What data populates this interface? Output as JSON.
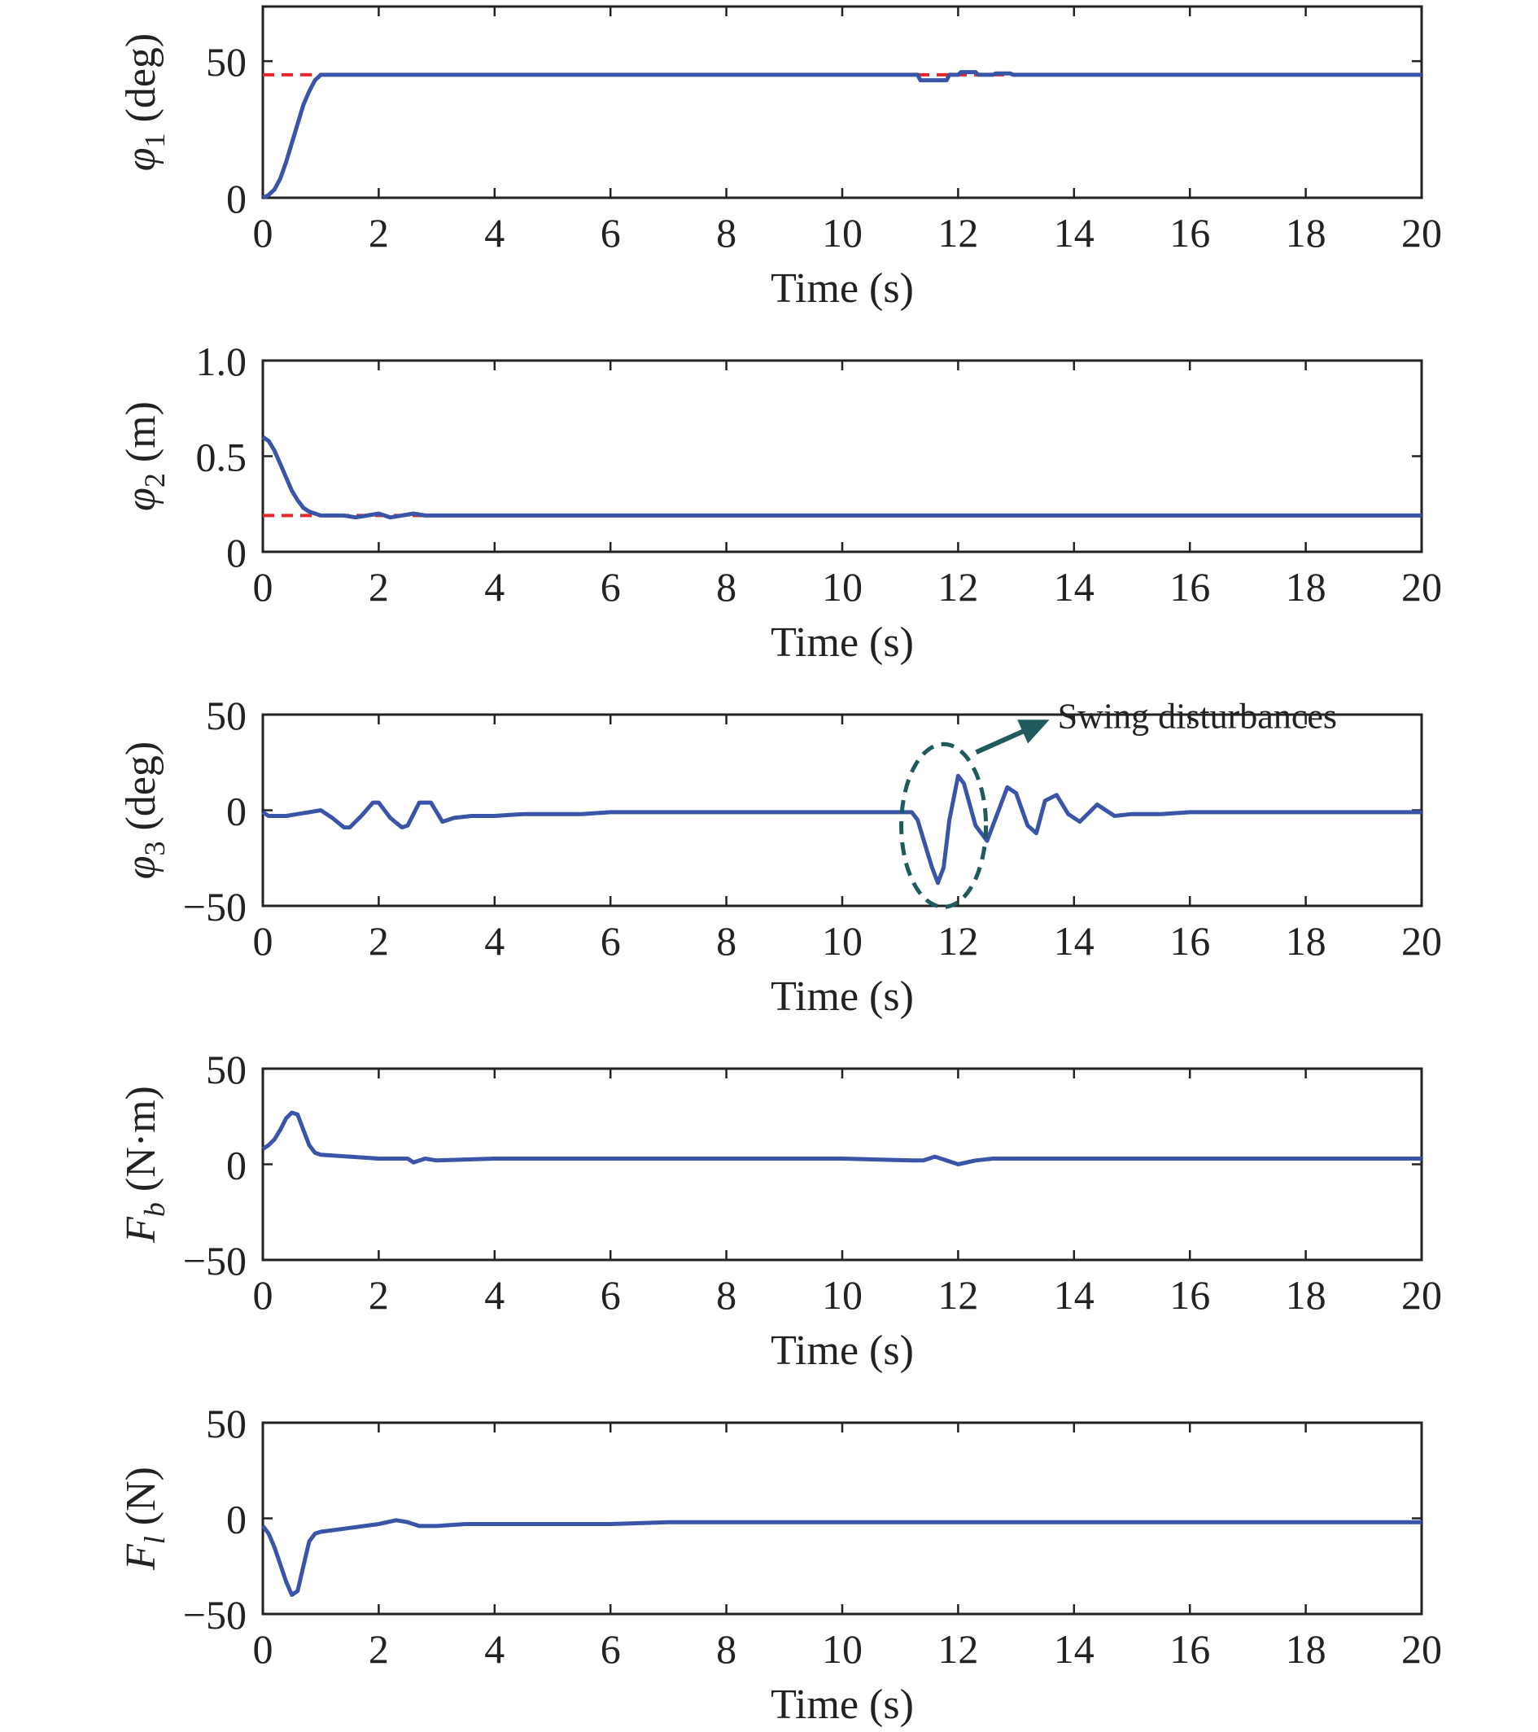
{
  "chart_data": [
    {
      "type": "line",
      "id": "phi1",
      "ylabel": {
        "symbol": "φ",
        "sub": "1",
        "unit": " (deg)"
      },
      "xlabel": "Time (s)",
      "xlim": [
        0,
        20
      ],
      "ylim": [
        0,
        70
      ],
      "xticks": [
        0,
        2,
        4,
        6,
        8,
        10,
        12,
        14,
        16,
        18,
        20
      ],
      "yticks": [
        0,
        50
      ],
      "reference": {
        "y": 45,
        "color": "#e8262a",
        "style": "dashed"
      },
      "series": [
        {
          "color": "#3a54a8",
          "x": [
            0,
            0.1,
            0.2,
            0.3,
            0.4,
            0.5,
            0.6,
            0.7,
            0.8,
            0.9,
            1.0,
            1.1,
            1.2,
            2,
            4,
            6,
            8,
            10,
            11.3,
            11.35,
            11.8,
            11.85,
            12.0,
            12.05,
            12.3,
            12.35,
            12.6,
            12.65,
            12.9,
            12.95,
            14,
            16,
            18,
            20
          ],
          "y": [
            0,
            1,
            3,
            7,
            13,
            20,
            27,
            34,
            39,
            43,
            45,
            45,
            45,
            45,
            45,
            45,
            45,
            45,
            45,
            43,
            43,
            45,
            45,
            46,
            46,
            45,
            45,
            45.5,
            45.5,
            45,
            45,
            45,
            45,
            45
          ]
        }
      ]
    },
    {
      "type": "line",
      "id": "phi2",
      "ylabel": {
        "symbol": "φ",
        "sub": "2",
        "unit": " (m)"
      },
      "xlabel": "Time (s)",
      "xlim": [
        0,
        20
      ],
      "ylim": [
        0,
        1.0
      ],
      "xticks": [
        0,
        2,
        4,
        6,
        8,
        10,
        12,
        14,
        16,
        18,
        20
      ],
      "yticks": [
        0,
        0.5,
        1.0
      ],
      "ytick_labels": [
        "0",
        "0.5",
        "1.0"
      ],
      "reference": {
        "y": 0.19,
        "color": "#e8262a",
        "style": "dashed"
      },
      "series": [
        {
          "color": "#3a54a8",
          "x": [
            0,
            0.1,
            0.2,
            0.3,
            0.4,
            0.5,
            0.6,
            0.7,
            0.8,
            0.9,
            1.0,
            1.2,
            1.4,
            1.6,
            1.8,
            2.0,
            2.2,
            2.4,
            2.6,
            2.8,
            4,
            6,
            8,
            10,
            12,
            14,
            16,
            18,
            20
          ],
          "y": [
            0.6,
            0.58,
            0.53,
            0.46,
            0.39,
            0.32,
            0.27,
            0.23,
            0.21,
            0.2,
            0.19,
            0.19,
            0.19,
            0.18,
            0.19,
            0.2,
            0.18,
            0.19,
            0.2,
            0.19,
            0.19,
            0.19,
            0.19,
            0.19,
            0.19,
            0.19,
            0.19,
            0.19,
            0.19
          ]
        }
      ]
    },
    {
      "type": "line",
      "id": "phi3",
      "ylabel": {
        "symbol": "φ",
        "sub": "3",
        "unit": " (deg)"
      },
      "xlabel": "Time (s)",
      "xlim": [
        0,
        20
      ],
      "ylim": [
        -50,
        50
      ],
      "xticks": [
        0,
        2,
        4,
        6,
        8,
        10,
        12,
        14,
        16,
        18,
        20
      ],
      "yticks": [
        -50,
        0,
        50
      ],
      "ytick_labels": [
        "−50",
        "0",
        "50"
      ],
      "annotation": {
        "text": "Swing disturbances",
        "cx": 11.75,
        "cy": -8
      },
      "series": [
        {
          "color": "#3a54a8",
          "x": [
            0,
            0.1,
            0.2,
            0.4,
            0.6,
            0.8,
            1.0,
            1.2,
            1.4,
            1.5,
            1.7,
            1.9,
            2.0,
            2.2,
            2.4,
            2.5,
            2.7,
            2.9,
            3.1,
            3.3,
            3.6,
            4.0,
            4.5,
            5.0,
            5.5,
            6.0,
            8,
            10,
            11.2,
            11.3,
            11.45,
            11.55,
            11.65,
            11.75,
            11.85,
            12.0,
            12.1,
            12.3,
            12.5,
            12.7,
            12.85,
            13.0,
            13.2,
            13.35,
            13.5,
            13.7,
            13.9,
            14.1,
            14.4,
            14.7,
            15.0,
            15.5,
            16.0,
            16.5,
            18,
            20
          ],
          "y": [
            -1,
            -3,
            -3,
            -3,
            -2,
            -1,
            0,
            -4,
            -9,
            -9,
            -3,
            4,
            4,
            -4,
            -9,
            -8,
            4,
            4,
            -6,
            -4,
            -3,
            -3,
            -2,
            -2,
            -2,
            -1,
            -1,
            -1,
            -1,
            -5,
            -20,
            -30,
            -38,
            -30,
            -5,
            18,
            14,
            -8,
            -16,
            0,
            12,
            9,
            -8,
            -12,
            5,
            8,
            -2,
            -6,
            3,
            -3,
            -2,
            -2,
            -1,
            -1,
            -1,
            -1
          ]
        }
      ]
    },
    {
      "type": "line",
      "id": "Fb",
      "ylabel": {
        "symbol": "F",
        "sub": "b",
        "unit": " (N·m)"
      },
      "xlabel": "Time (s)",
      "xlim": [
        0,
        20
      ],
      "ylim": [
        -50,
        50
      ],
      "xticks": [
        0,
        2,
        4,
        6,
        8,
        10,
        12,
        14,
        16,
        18,
        20
      ],
      "yticks": [
        -50,
        0,
        50
      ],
      "ytick_labels": [
        "−50",
        "0",
        "50"
      ],
      "series": [
        {
          "color": "#3a54a8",
          "x": [
            0,
            0.1,
            0.2,
            0.3,
            0.4,
            0.5,
            0.6,
            0.7,
            0.8,
            0.9,
            1.0,
            1.5,
            2.0,
            2.5,
            2.6,
            2.8,
            3.0,
            4,
            5,
            6,
            7,
            8,
            10,
            11.2,
            11.4,
            11.6,
            11.8,
            12.0,
            12.3,
            12.6,
            13,
            14,
            16,
            18,
            20
          ],
          "y": [
            8,
            10,
            13,
            18,
            24,
            27,
            26,
            18,
            10,
            6,
            5,
            4,
            3,
            3,
            1,
            3,
            2,
            3,
            3,
            3,
            3,
            3,
            3,
            2,
            2,
            4,
            2,
            0,
            2,
            3,
            3,
            3,
            3,
            3,
            3
          ]
        }
      ]
    },
    {
      "type": "line",
      "id": "Fl",
      "ylabel": {
        "symbol": "F",
        "sub": "l",
        "unit": " (N)"
      },
      "xlabel": "Time (s)",
      "xlim": [
        0,
        20
      ],
      "ylim": [
        -50,
        50
      ],
      "xticks": [
        0,
        2,
        4,
        6,
        8,
        10,
        12,
        14,
        16,
        18,
        20
      ],
      "yticks": [
        -50,
        0,
        50
      ],
      "ytick_labels": [
        "−50",
        "0",
        "50"
      ],
      "series": [
        {
          "color": "#3a54a8",
          "x": [
            0,
            0.1,
            0.2,
            0.3,
            0.4,
            0.5,
            0.6,
            0.7,
            0.8,
            0.9,
            1.0,
            1.5,
            2.0,
            2.3,
            2.5,
            2.7,
            3.0,
            3.5,
            4.0,
            5.0,
            6.0,
            7.0,
            8,
            10,
            12,
            14,
            16,
            18,
            20
          ],
          "y": [
            -4,
            -8,
            -15,
            -24,
            -33,
            -40,
            -38,
            -25,
            -12,
            -8,
            -7,
            -5,
            -3,
            -1,
            -2,
            -4,
            -4,
            -3,
            -3,
            -3,
            -3,
            -2,
            -2,
            -2,
            -2,
            -2,
            -2,
            -2,
            -2
          ]
        }
      ]
    }
  ]
}
